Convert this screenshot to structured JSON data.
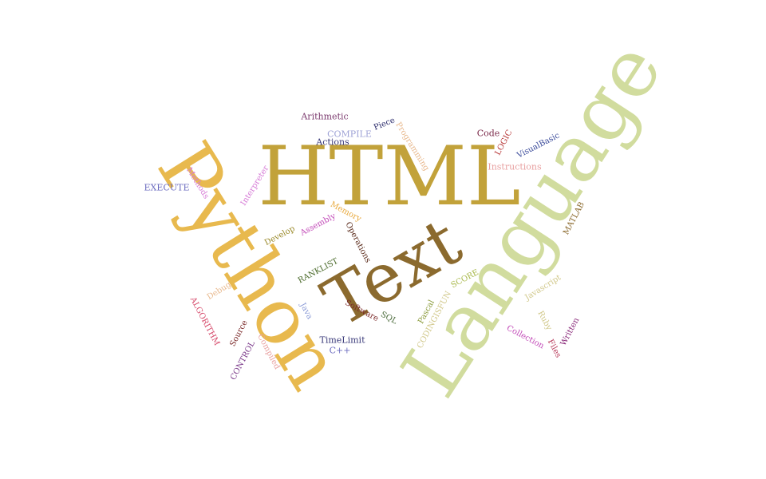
{
  "word_cloud": {
    "words": [
      {
        "text": "HTML",
        "color": "#c2a23a",
        "orientation": "horizontal"
      },
      {
        "text": "Language",
        "color": "#d1dc9e",
        "orientation": "rotated"
      },
      {
        "text": "Python",
        "color": "#e8b94e",
        "orientation": "rotated"
      },
      {
        "text": "Text",
        "color": "#8b6a2e",
        "orientation": "rotated"
      },
      {
        "text": "Arithmetic",
        "color": "#7b3a6e",
        "orientation": "horizontal"
      },
      {
        "text": "COMPILE",
        "color": "#9fa3d6",
        "orientation": "horizontal"
      },
      {
        "text": "Actions",
        "color": "#3a3a7a",
        "orientation": "horizontal"
      },
      {
        "text": "Piece",
        "color": "#2a2a6a",
        "orientation": "rotated"
      },
      {
        "text": "Programming",
        "color": "#e8b98e",
        "orientation": "rotated"
      },
      {
        "text": "Code",
        "color": "#7b2a4a",
        "orientation": "horizontal"
      },
      {
        "text": "LOGIC",
        "color": "#b83a3a",
        "orientation": "rotated"
      },
      {
        "text": "VisualBasic",
        "color": "#3a4a9a",
        "orientation": "rotated"
      },
      {
        "text": "Instructions",
        "color": "#e8a0a0",
        "orientation": "horizontal"
      },
      {
        "text": "EXECUTE",
        "color": "#6b6bbf",
        "orientation": "horizontal"
      },
      {
        "text": "Methods",
        "color": "#d67bd6",
        "orientation": "rotated"
      },
      {
        "text": "Interpreter",
        "color": "#d67bd6",
        "orientation": "rotated"
      },
      {
        "text": "Memory",
        "color": "#e8a83a",
        "orientation": "rotated"
      },
      {
        "text": "Assembly",
        "color": "#c24ab8",
        "orientation": "rotated"
      },
      {
        "text": "Develop",
        "color": "#9a8a2a",
        "orientation": "rotated"
      },
      {
        "text": "Operations",
        "color": "#5a2a1a",
        "orientation": "rotated"
      },
      {
        "text": "MATLAB",
        "color": "#8b6a2e",
        "orientation": "rotated"
      },
      {
        "text": "RANKLIST",
        "color": "#4a6a2a",
        "orientation": "rotated"
      },
      {
        "text": "SCORE",
        "color": "#a8b84a",
        "orientation": "rotated"
      },
      {
        "text": "Javascript",
        "color": "#d1c88a",
        "orientation": "rotated"
      },
      {
        "text": "Debug",
        "color": "#e8b98e",
        "orientation": "rotated"
      },
      {
        "text": "ALGORITHM",
        "color": "#d64a6b",
        "orientation": "rotated"
      },
      {
        "text": "Java",
        "color": "#8a9ad6",
        "orientation": "rotated"
      },
      {
        "text": "Software",
        "color": "#7b2a2a",
        "orientation": "rotated"
      },
      {
        "text": "SQL",
        "color": "#4a6a3a",
        "orientation": "rotated"
      },
      {
        "text": "Pascal",
        "color": "#8a9a3a",
        "orientation": "rotated"
      },
      {
        "text": "CODINGISFUN",
        "color": "#d1c88a",
        "orientation": "rotated"
      },
      {
        "text": "Ruby",
        "color": "#d1c88a",
        "orientation": "rotated"
      },
      {
        "text": "Collection",
        "color": "#c24ab8",
        "orientation": "rotated"
      },
      {
        "text": "Files",
        "color": "#b83a5a",
        "orientation": "rotated"
      },
      {
        "text": "Written",
        "color": "#8a2a7a",
        "orientation": "rotated"
      },
      {
        "text": "Source",
        "color": "#7b2a2a",
        "orientation": "rotated"
      },
      {
        "text": "CONTROL",
        "color": "#7b3a8a",
        "orientation": "rotated"
      },
      {
        "text": "Compiled",
        "color": "#e8a0a0",
        "orientation": "rotated"
      },
      {
        "text": "TimeLimit",
        "color": "#3a3a7a",
        "orientation": "horizontal"
      },
      {
        "text": "C++",
        "color": "#6b6bbf",
        "orientation": "horizontal"
      }
    ]
  }
}
